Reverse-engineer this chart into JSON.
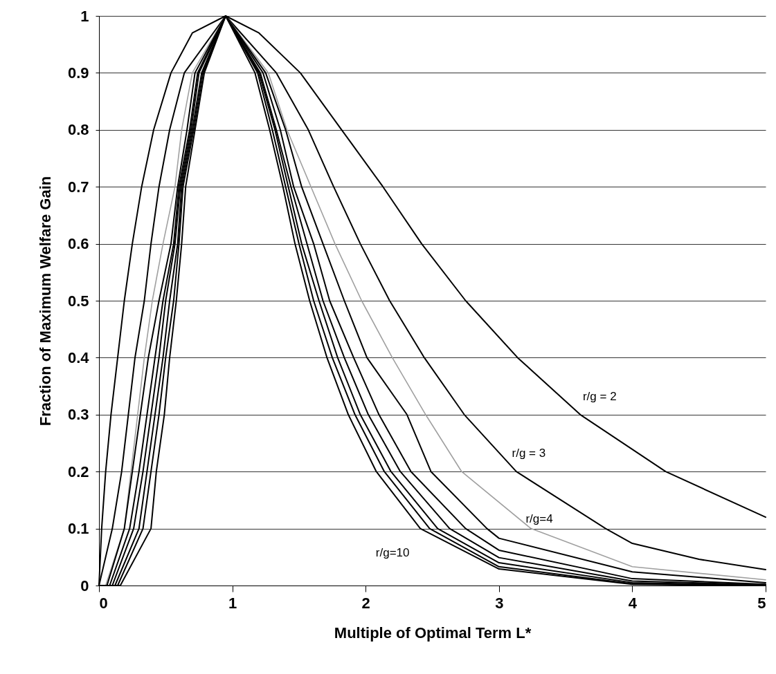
{
  "chart_data": {
    "type": "line",
    "xlabel": "Multiple of Optimal Term L*",
    "ylabel": "Fraction of Maximum Welfare Gain",
    "xlim": [
      0,
      5
    ],
    "xticks": [
      0,
      1,
      2,
      3,
      4,
      5
    ],
    "ylim": [
      0,
      1
    ],
    "yticks": [
      0,
      0.1,
      0.2,
      0.3,
      0.4,
      0.5,
      0.6,
      0.7,
      0.8,
      0.9,
      1
    ],
    "grid": "y",
    "line_style": "solid",
    "series": [
      {
        "name": "r/g = 2",
        "color": "#000000",
        "x": [
          0,
          0.02,
          0.05,
          0.09,
          0.14,
          0.19,
          0.25,
          0.32,
          0.41,
          0.54,
          0.7,
          0.95,
          1.2,
          1.51,
          1.82,
          2.13,
          2.42,
          2.75,
          3.14,
          3.61,
          4.25,
          5
        ],
        "values": [
          0,
          0.1,
          0.2,
          0.3,
          0.4,
          0.5,
          0.6,
          0.7,
          0.8,
          0.9,
          0.97,
          1,
          0.97,
          0.9,
          0.8,
          0.7,
          0.6,
          0.5,
          0.4,
          0.3,
          0.2,
          0.12
        ]
      },
      {
        "name": "r/g = 3",
        "color": "#000000",
        "x": [
          0,
          0.1,
          0.17,
          0.22,
          0.27,
          0.34,
          0.39,
          0.45,
          0.53,
          0.64,
          0.95,
          1.33,
          1.57,
          1.76,
          1.96,
          2.18,
          2.44,
          2.74,
          3.13,
          3.8,
          4,
          4.5,
          5
        ],
        "values": [
          0,
          0.1,
          0.2,
          0.3,
          0.4,
          0.5,
          0.6,
          0.7,
          0.8,
          0.9,
          1,
          0.9,
          0.8,
          0.7,
          0.6,
          0.5,
          0.4,
          0.3,
          0.2,
          0.1,
          0.074,
          0.046,
          0.028
        ]
      },
      {
        "name": "r/g=4",
        "color": "#a0a0a0",
        "x": [
          0,
          0.05,
          0.19,
          0.24,
          0.29,
          0.34,
          0.4,
          0.48,
          0.57,
          0.62,
          0.7,
          0.95,
          1.27,
          1.41,
          1.59,
          1.77,
          1.97,
          2.2,
          2.45,
          2.72,
          3.24,
          4,
          5
        ],
        "values": [
          0,
          0,
          0.1,
          0.2,
          0.3,
          0.4,
          0.5,
          0.6,
          0.7,
          0.8,
          0.9,
          1,
          0.9,
          0.8,
          0.7,
          0.6,
          0.5,
          0.4,
          0.3,
          0.2,
          0.1,
          0.033,
          0.01
        ]
      },
      {
        "color": "#000000",
        "x": [
          0,
          0.06,
          0.19,
          0.25,
          0.31,
          0.37,
          0.45,
          0.54,
          0.59,
          0.66,
          0.72,
          0.95,
          1.25,
          1.4,
          1.52,
          1.68,
          1.84,
          2.01,
          2.31,
          2.49,
          2.91,
          3,
          4,
          5
        ],
        "values": [
          0,
          0,
          0.1,
          0.2,
          0.3,
          0.4,
          0.5,
          0.6,
          0.7,
          0.8,
          0.9,
          1,
          0.9,
          0.8,
          0.7,
          0.6,
          0.5,
          0.4,
          0.3,
          0.2,
          0.1,
          0.083,
          0.024,
          0.005
        ]
      },
      {
        "color": "#000000",
        "x": [
          0,
          0.08,
          0.23,
          0.3,
          0.36,
          0.42,
          0.48,
          0.56,
          0.6,
          0.68,
          0.74,
          0.95,
          1.23,
          1.36,
          1.46,
          1.61,
          1.73,
          1.91,
          2.1,
          2.34,
          2.75,
          3,
          4,
          5
        ],
        "values": [
          0,
          0,
          0.1,
          0.2,
          0.3,
          0.4,
          0.5,
          0.6,
          0.7,
          0.8,
          0.9,
          1,
          0.9,
          0.8,
          0.7,
          0.6,
          0.5,
          0.4,
          0.3,
          0.2,
          0.1,
          0.062,
          0.012,
          0.002
        ]
      },
      {
        "color": "#000000",
        "x": [
          0,
          0.1,
          0.26,
          0.33,
          0.39,
          0.45,
          0.5,
          0.57,
          0.61,
          0.69,
          0.75,
          0.95,
          1.21,
          1.33,
          1.44,
          1.56,
          1.68,
          1.84,
          2.02,
          2.26,
          2.63,
          3,
          4,
          5
        ],
        "values": [
          0,
          0,
          0.1,
          0.2,
          0.3,
          0.4,
          0.5,
          0.6,
          0.7,
          0.8,
          0.9,
          1,
          0.9,
          0.8,
          0.7,
          0.6,
          0.5,
          0.4,
          0.3,
          0.2,
          0.1,
          0.049,
          0.008,
          0.001
        ]
      },
      {
        "color": "#000000",
        "x": [
          0,
          0.12,
          0.3,
          0.36,
          0.42,
          0.48,
          0.53,
          0.59,
          0.62,
          0.7,
          0.77,
          0.95,
          1.2,
          1.32,
          1.42,
          1.52,
          1.65,
          1.79,
          1.96,
          2.19,
          2.54,
          3,
          4,
          5
        ],
        "values": [
          0,
          0,
          0.1,
          0.2,
          0.3,
          0.4,
          0.5,
          0.6,
          0.7,
          0.8,
          0.9,
          1,
          0.9,
          0.8,
          0.7,
          0.6,
          0.5,
          0.4,
          0.3,
          0.2,
          0.1,
          0.04,
          0.005,
          0
        ]
      },
      {
        "color": "#000000",
        "x": [
          0,
          0.14,
          0.33,
          0.39,
          0.45,
          0.5,
          0.56,
          0.6,
          0.63,
          0.71,
          0.78,
          0.95,
          1.19,
          1.3,
          1.4,
          1.5,
          1.61,
          1.75,
          1.92,
          2.14,
          2.48,
          3,
          4,
          5
        ],
        "values": [
          0,
          0,
          0.1,
          0.2,
          0.3,
          0.4,
          0.5,
          0.6,
          0.7,
          0.8,
          0.9,
          1,
          0.9,
          0.8,
          0.7,
          0.6,
          0.5,
          0.4,
          0.3,
          0.2,
          0.1,
          0.033,
          0.003,
          0
        ]
      },
      {
        "name": "r/g=10",
        "color": "#000000",
        "x": [
          0,
          0.16,
          0.39,
          0.43,
          0.49,
          0.53,
          0.58,
          0.62,
          0.65,
          0.72,
          0.79,
          0.95,
          1.17,
          1.28,
          1.38,
          1.47,
          1.58,
          1.71,
          1.87,
          2.08,
          2.41,
          3,
          4,
          5
        ],
        "values": [
          0,
          0,
          0.1,
          0.2,
          0.3,
          0.4,
          0.5,
          0.6,
          0.7,
          0.8,
          0.9,
          1,
          0.9,
          0.8,
          0.7,
          0.6,
          0.5,
          0.4,
          0.3,
          0.2,
          0.1,
          0.029,
          0.002,
          0
        ]
      }
    ]
  }
}
